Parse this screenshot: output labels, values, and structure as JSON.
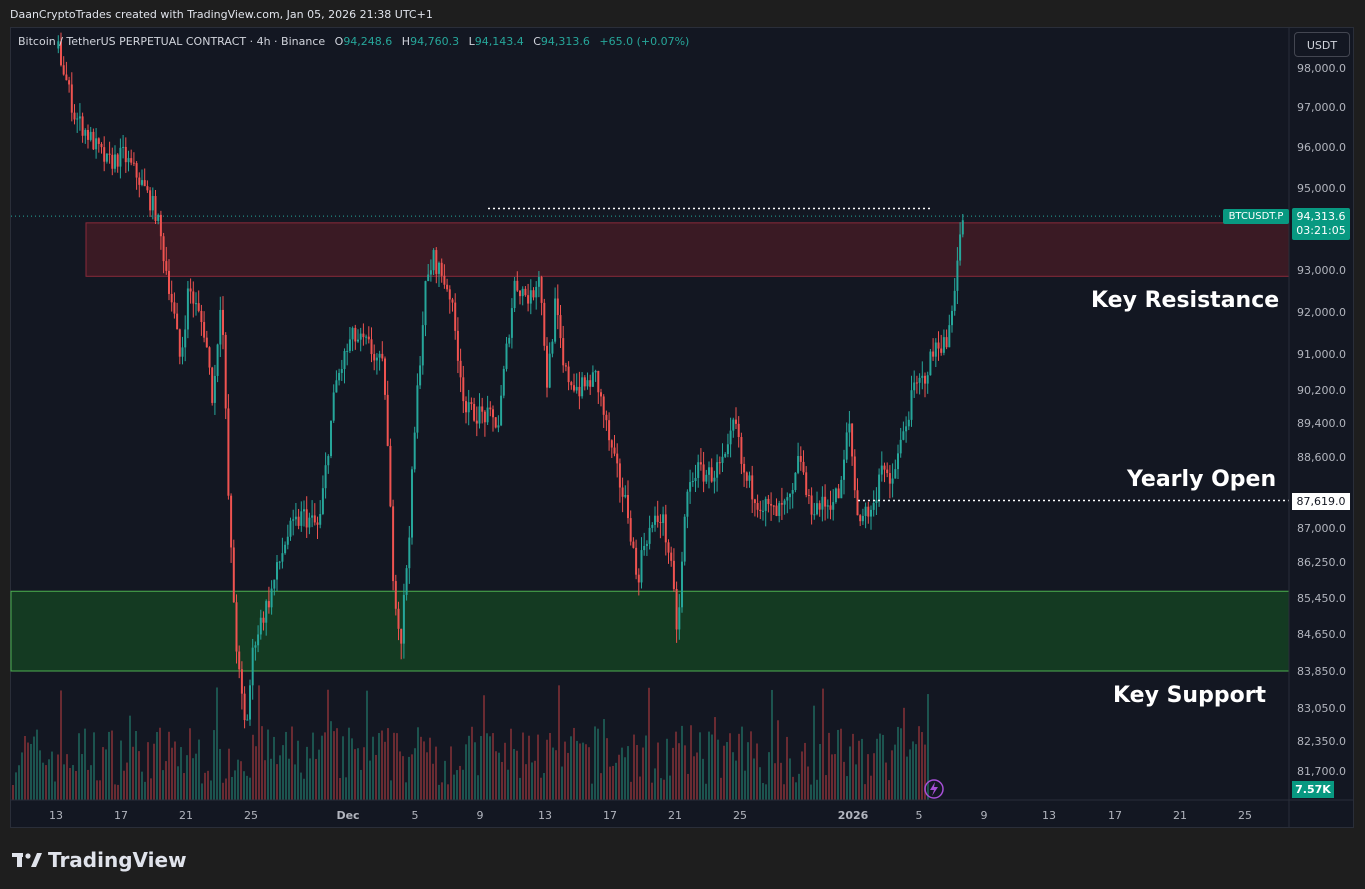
{
  "header": {
    "attribution": "DaanCryptoTrades created with TradingView.com, Jan 05, 2026 21:38 UTC+1"
  },
  "legend": {
    "symbol_text": "Bitcoin / TetherUS PERPETUAL CONTRACT · 4h · Binance",
    "o_label": "O",
    "o_value": "94,248.6",
    "h_label": "H",
    "h_value": "94,760.3",
    "l_label": "L",
    "l_value": "94,143.4",
    "c_label": "C",
    "c_value": "94,313.6",
    "change": "+65.0 (+0.07%)"
  },
  "currency_button": "USDT",
  "price_tag": {
    "symbol": "BTCUSDT.P",
    "price": "94,313.6",
    "countdown": "03:21:05"
  },
  "yearly_open_tag": "87,619.0",
  "volume_tag": "7.57K",
  "annotations": {
    "resistance": "Key Resistance",
    "yearly_open": "Yearly Open",
    "support": "Key Support"
  },
  "footer": {
    "logo_text": "TradingView"
  },
  "colors": {
    "background": "#131722",
    "up": "#26a69a",
    "down": "#ef5350",
    "resistance_zone": "#3a1a24",
    "support_zone": "#143a22",
    "support_border": "#4caf50"
  },
  "chart_data": {
    "type": "candlestick",
    "timeframe": "4h",
    "y_ticks": [
      {
        "v": 98000,
        "label": "98,000.0"
      },
      {
        "v": 97000,
        "label": "97,000.0"
      },
      {
        "v": 96000,
        "label": "96,000.0"
      },
      {
        "v": 95000,
        "label": "95,000.0"
      },
      {
        "v": 93000,
        "label": "93,000.0"
      },
      {
        "v": 92000,
        "label": "92,000.0"
      },
      {
        "v": 91000,
        "label": "91,000.0"
      },
      {
        "v": 90200,
        "label": "90,200.0"
      },
      {
        "v": 89400,
        "label": "89,400.0"
      },
      {
        "v": 88600,
        "label": "88,600.0"
      },
      {
        "v": 87000,
        "label": "87,000.0"
      },
      {
        "v": 86250,
        "label": "86,250.0"
      },
      {
        "v": 85450,
        "label": "85,450.0"
      },
      {
        "v": 84650,
        "label": "84,650.0"
      },
      {
        "v": 83850,
        "label": "83,850.0"
      },
      {
        "v": 83050,
        "label": "83,050.0"
      },
      {
        "v": 82350,
        "label": "82,350.0"
      },
      {
        "v": 81700,
        "label": "81,700.0"
      }
    ],
    "x_ticks": [
      "13",
      "17",
      "21",
      "25",
      "Dec",
      "5",
      "9",
      "13",
      "17",
      "21",
      "25",
      "2026",
      "5",
      "9",
      "13",
      "17",
      "21",
      "25"
    ],
    "ylim": [
      81350,
      98400
    ],
    "days_shown": "Nov 10, 2025 – Jan 27, 2026",
    "last_close": 94313.6,
    "zones": {
      "resistance": [
        92850,
        94150
      ],
      "support": [
        83850,
        85600
      ]
    },
    "yearly_open": 87619.0,
    "recent_high_line": 94500,
    "price_path": [
      {
        "date": "2025-11-11",
        "price": 98500
      },
      {
        "date": "2025-11-12",
        "price": 96800
      },
      {
        "date": "2025-11-13",
        "price": 96200
      },
      {
        "date": "2025-11-14",
        "price": 95600
      },
      {
        "date": "2025-11-15",
        "price": 95800
      },
      {
        "date": "2025-11-16",
        "price": 95200
      },
      {
        "date": "2025-11-17",
        "price": 94400
      },
      {
        "date": "2025-11-18",
        "price": 92200
      },
      {
        "date": "2025-11-18",
        "price": 90800
      },
      {
        "date": "2025-11-19",
        "price": 92600
      },
      {
        "date": "2025-11-20",
        "price": 91500
      },
      {
        "date": "2025-11-20",
        "price": 89900
      },
      {
        "date": "2025-11-21",
        "price": 92600
      },
      {
        "date": "2025-11-21",
        "price": 87000
      },
      {
        "date": "2025-11-22",
        "price": 84000
      },
      {
        "date": "2025-11-22",
        "price": 82500
      },
      {
        "date": "2025-11-23",
        "price": 84500
      },
      {
        "date": "2025-11-24",
        "price": 85500
      },
      {
        "date": "2025-11-25",
        "price": 86800
      },
      {
        "date": "2025-11-26",
        "price": 87300
      },
      {
        "date": "2025-11-27",
        "price": 87000
      },
      {
        "date": "2025-11-28",
        "price": 90300
      },
      {
        "date": "2025-11-29",
        "price": 91400
      },
      {
        "date": "2025-11-30",
        "price": 91200
      },
      {
        "date": "2025-12-01",
        "price": 90600
      },
      {
        "date": "2025-12-01",
        "price": 86200
      },
      {
        "date": "2025-12-02",
        "price": 84400
      },
      {
        "date": "2025-12-02",
        "price": 86800
      },
      {
        "date": "2025-12-03",
        "price": 90000
      },
      {
        "date": "2025-12-03",
        "price": 92500
      },
      {
        "date": "2025-12-04",
        "price": 93300
      },
      {
        "date": "2025-12-05",
        "price": 92500
      },
      {
        "date": "2025-12-06",
        "price": 89700
      },
      {
        "date": "2025-12-07",
        "price": 89600
      },
      {
        "date": "2025-12-08",
        "price": 89400
      },
      {
        "date": "2025-12-08",
        "price": 91100
      },
      {
        "date": "2025-12-09",
        "price": 92700
      },
      {
        "date": "2025-12-10",
        "price": 92300
      },
      {
        "date": "2025-12-10",
        "price": 93000
      },
      {
        "date": "2025-12-11",
        "price": 90300
      },
      {
        "date": "2025-12-11",
        "price": 92200
      },
      {
        "date": "2025-12-12",
        "price": 90600
      },
      {
        "date": "2025-12-13",
        "price": 90200
      },
      {
        "date": "2025-12-14",
        "price": 90500
      },
      {
        "date": "2025-12-15",
        "price": 88600
      },
      {
        "date": "2025-12-16",
        "price": 87300
      },
      {
        "date": "2025-12-16",
        "price": 85800
      },
      {
        "date": "2025-12-17",
        "price": 86800
      },
      {
        "date": "2025-12-18",
        "price": 87300
      },
      {
        "date": "2025-12-18",
        "price": 86400
      },
      {
        "date": "2025-12-19",
        "price": 84600
      },
      {
        "date": "2025-12-19",
        "price": 87600
      },
      {
        "date": "2025-12-20",
        "price": 88300
      },
      {
        "date": "2025-12-21",
        "price": 88200
      },
      {
        "date": "2025-12-22",
        "price": 88500
      },
      {
        "date": "2025-12-22",
        "price": 89500
      },
      {
        "date": "2025-12-23",
        "price": 88200
      },
      {
        "date": "2025-12-24",
        "price": 87600
      },
      {
        "date": "2025-12-25",
        "price": 87300
      },
      {
        "date": "2025-12-26",
        "price": 87600
      },
      {
        "date": "2025-12-26",
        "price": 88700
      },
      {
        "date": "2025-12-27",
        "price": 87500
      },
      {
        "date": "2025-12-28",
        "price": 87500
      },
      {
        "date": "2025-12-29",
        "price": 87800
      },
      {
        "date": "2025-12-29",
        "price": 89500
      },
      {
        "date": "2025-12-30",
        "price": 87300
      },
      {
        "date": "2025-12-31",
        "price": 87400
      },
      {
        "date": "2025-12-31",
        "price": 88600
      },
      {
        "date": "2026-01-01",
        "price": 87800
      },
      {
        "date": "2026-01-02",
        "price": 89400
      },
      {
        "date": "2026-01-02",
        "price": 90200
      },
      {
        "date": "2026-01-03",
        "price": 90400
      },
      {
        "date": "2026-01-04",
        "price": 91300
      },
      {
        "date": "2026-01-04",
        "price": 91200
      },
      {
        "date": "2026-01-05",
        "price": 92700
      },
      {
        "date": "2026-01-05",
        "price": 94313
      }
    ]
  }
}
